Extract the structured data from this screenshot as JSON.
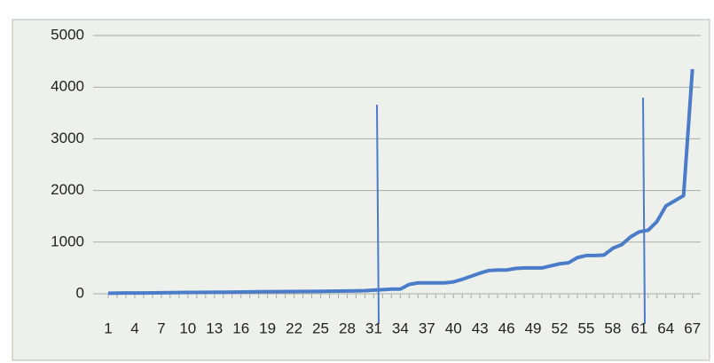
{
  "chart_data": {
    "type": "line",
    "categories": [
      "1",
      null,
      null,
      "4",
      null,
      null,
      "7",
      null,
      null,
      "10",
      null,
      null,
      "13",
      null,
      null,
      "16",
      null,
      null,
      "19",
      null,
      null,
      "22",
      null,
      null,
      "25",
      null,
      null,
      "28",
      null,
      null,
      "31",
      null,
      null,
      "34",
      null,
      null,
      "37",
      null,
      null,
      "40",
      null,
      null,
      "43",
      null,
      null,
      "46",
      null,
      null,
      "49",
      null,
      null,
      "52",
      null,
      null,
      "55",
      null,
      null,
      "58",
      null,
      null,
      "61",
      null,
      null,
      "64",
      null,
      null,
      "67"
    ],
    "values": [
      10,
      12,
      14,
      15,
      16,
      18,
      20,
      22,
      24,
      25,
      26,
      28,
      30,
      30,
      32,
      34,
      36,
      38,
      40,
      40,
      42,
      44,
      45,
      46,
      48,
      50,
      52,
      54,
      56,
      60,
      70,
      80,
      90,
      90,
      180,
      210,
      210,
      210,
      210,
      230,
      280,
      340,
      400,
      450,
      460,
      460,
      490,
      500,
      500,
      500,
      540,
      580,
      600,
      700,
      740,
      740,
      750,
      880,
      950,
      1100,
      1200,
      1230,
      1400,
      1700,
      1800,
      1900,
      4350
    ],
    "color": "#4a7cc9",
    "ylim": [
      0,
      5000
    ],
    "yticks": [
      0,
      1000,
      2000,
      3000,
      4000,
      5000
    ],
    "grid": true
  }
}
